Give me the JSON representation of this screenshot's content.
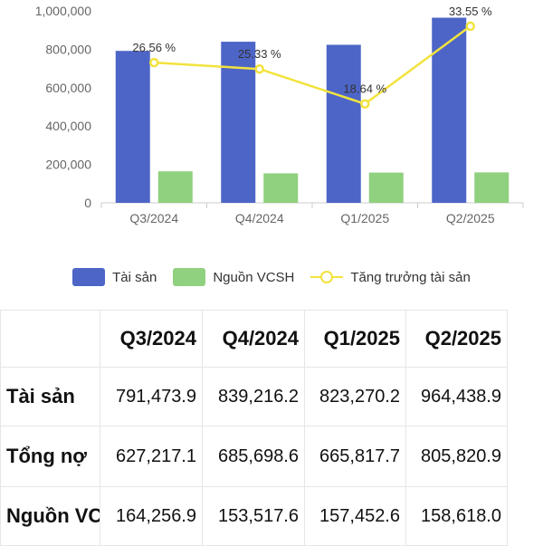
{
  "chart_data": {
    "type": "bar+line",
    "categories": [
      "Q3/2024",
      "Q4/2024",
      "Q1/2025",
      "Q2/2025"
    ],
    "series": [
      {
        "name": "Tài sản",
        "type": "bar",
        "color": "#4d65c7",
        "values": [
          791473.9,
          839216.2,
          823270.2,
          964438.9
        ]
      },
      {
        "name": "Nguồn VCSH",
        "type": "bar",
        "color": "#8fd17e",
        "values": [
          164256.9,
          153517.6,
          157452.6,
          158618.0
        ]
      },
      {
        "name": "Tăng trưởng tài sản",
        "type": "line",
        "color": "#f2e33d",
        "values": [
          26.56,
          25.33,
          18.64,
          33.55
        ],
        "labels": [
          "26.56 %",
          "25.33 %",
          "18.64 %",
          "33.55 %"
        ]
      }
    ],
    "y_ticks": [
      "0",
      "200,000",
      "400,000",
      "600,000",
      "800,000",
      "1,000,000"
    ],
    "ylim": [
      0,
      1000000
    ],
    "line_axis": "secondary (hidden)",
    "grid": false,
    "legend_position": "bottom"
  },
  "legend": [
    {
      "label": "Tài sản",
      "kind": "bar",
      "color": "#4d65c7"
    },
    {
      "label": "Nguồn VCSH",
      "kind": "bar",
      "color": "#8fd17e"
    },
    {
      "label": "Tăng trưởng tài sản",
      "kind": "line",
      "color": "#f2e33d"
    }
  ],
  "table": {
    "header": [
      "",
      "Q3/2024",
      "Q4/2024",
      "Q1/2025",
      "Q2/2025"
    ],
    "rows": [
      {
        "label": "Tài sản",
        "values": [
          "791,473.9",
          "839,216.2",
          "823,270.2",
          "964,438.9"
        ]
      },
      {
        "label": "Tổng nợ",
        "values": [
          "627,217.1",
          "685,698.6",
          "665,817.7",
          "805,820.9"
        ]
      },
      {
        "label": "Nguồn VC",
        "values": [
          "164,256.9",
          "153,517.6",
          "157,452.6",
          "158,618.0"
        ]
      }
    ]
  }
}
